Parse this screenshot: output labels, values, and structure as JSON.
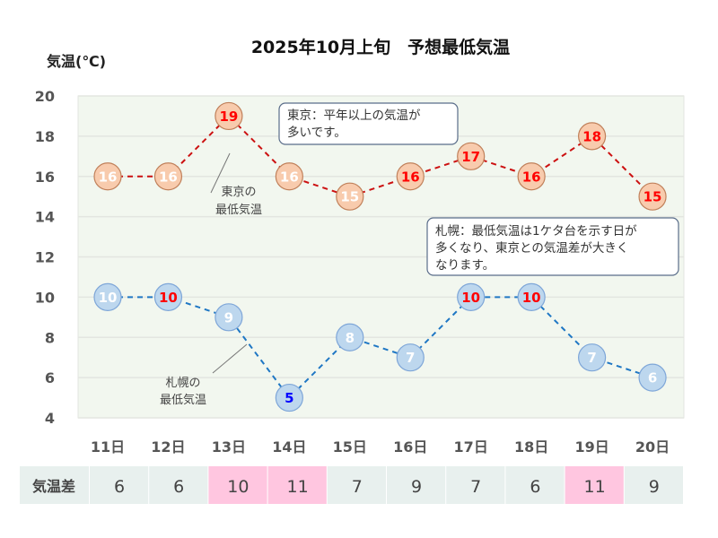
{
  "chart_data": {
    "type": "line",
    "title": "2025年10月上旬　予想最低気温",
    "ylabel": "気温(℃)",
    "xlabel": "",
    "ylim": [
      4,
      20
    ],
    "yticks": [
      "20",
      "18",
      "16",
      "14",
      "12",
      "10",
      "8",
      "6",
      "4"
    ],
    "ytick_values": [
      20,
      18,
      16,
      14,
      12,
      10,
      8,
      6,
      4
    ],
    "grid": true,
    "categories": [
      "11日",
      "12日",
      "13日",
      "14日",
      "15日",
      "16日",
      "17日",
      "18日",
      "19日",
      "20日"
    ],
    "series": [
      {
        "name": "東京の最低気温",
        "values": [
          16,
          16,
          19,
          16,
          15,
          16,
          17,
          16,
          18,
          15
        ],
        "label_colors": [
          "#ffffff",
          "#ffffff",
          "#ff0000",
          "#ffffff",
          "#ffffff",
          "#ff0000",
          "#ff0000",
          "#ff0000",
          "#ff0000",
          "#ff0000"
        ],
        "line_color": "#cc1111",
        "marker_fill": "#f8cbad",
        "marker_stroke": "#c0805a"
      },
      {
        "name": "札幌の最低気温",
        "values": [
          10,
          10,
          9,
          5,
          8,
          7,
          10,
          10,
          7,
          6
        ],
        "label_colors": [
          "#ffffff",
          "#ff0000",
          "#ffffff",
          "#0000ff",
          "#ffffff",
          "#ffffff",
          "#ff0000",
          "#ff0000",
          "#ffffff",
          "#ffffff"
        ],
        "line_color": "#1f77c4",
        "marker_fill": "#bdd7ee",
        "marker_stroke": "#7ea6d8"
      }
    ],
    "callouts": [
      {
        "lines": [
          "東京の",
          "最低気温"
        ],
        "series": "東京の最低気温"
      },
      {
        "lines": [
          "札幌の",
          "最低気温"
        ],
        "series": "札幌の最低気温"
      }
    ],
    "annotations": [
      {
        "lines": [
          "東京：平年以上の気温が",
          "多いです。"
        ]
      },
      {
        "lines": [
          "札幌：最低気温は1ケタ台を示す日が",
          "多くなり、東京との気温差が大きく",
          "なります。"
        ]
      }
    ],
    "plot_background": "#f2f7ef",
    "gridline_color": "#e3e6e0"
  },
  "diff_table": {
    "header": "気温差",
    "values": [
      "6",
      "6",
      "10",
      "11",
      "7",
      "9",
      "7",
      "6",
      "11",
      "9"
    ],
    "highlighted": [
      false,
      false,
      true,
      true,
      false,
      false,
      false,
      false,
      true,
      false
    ],
    "cell_color": "#e8f0ee",
    "highlight_color": "#ffc6e0"
  }
}
